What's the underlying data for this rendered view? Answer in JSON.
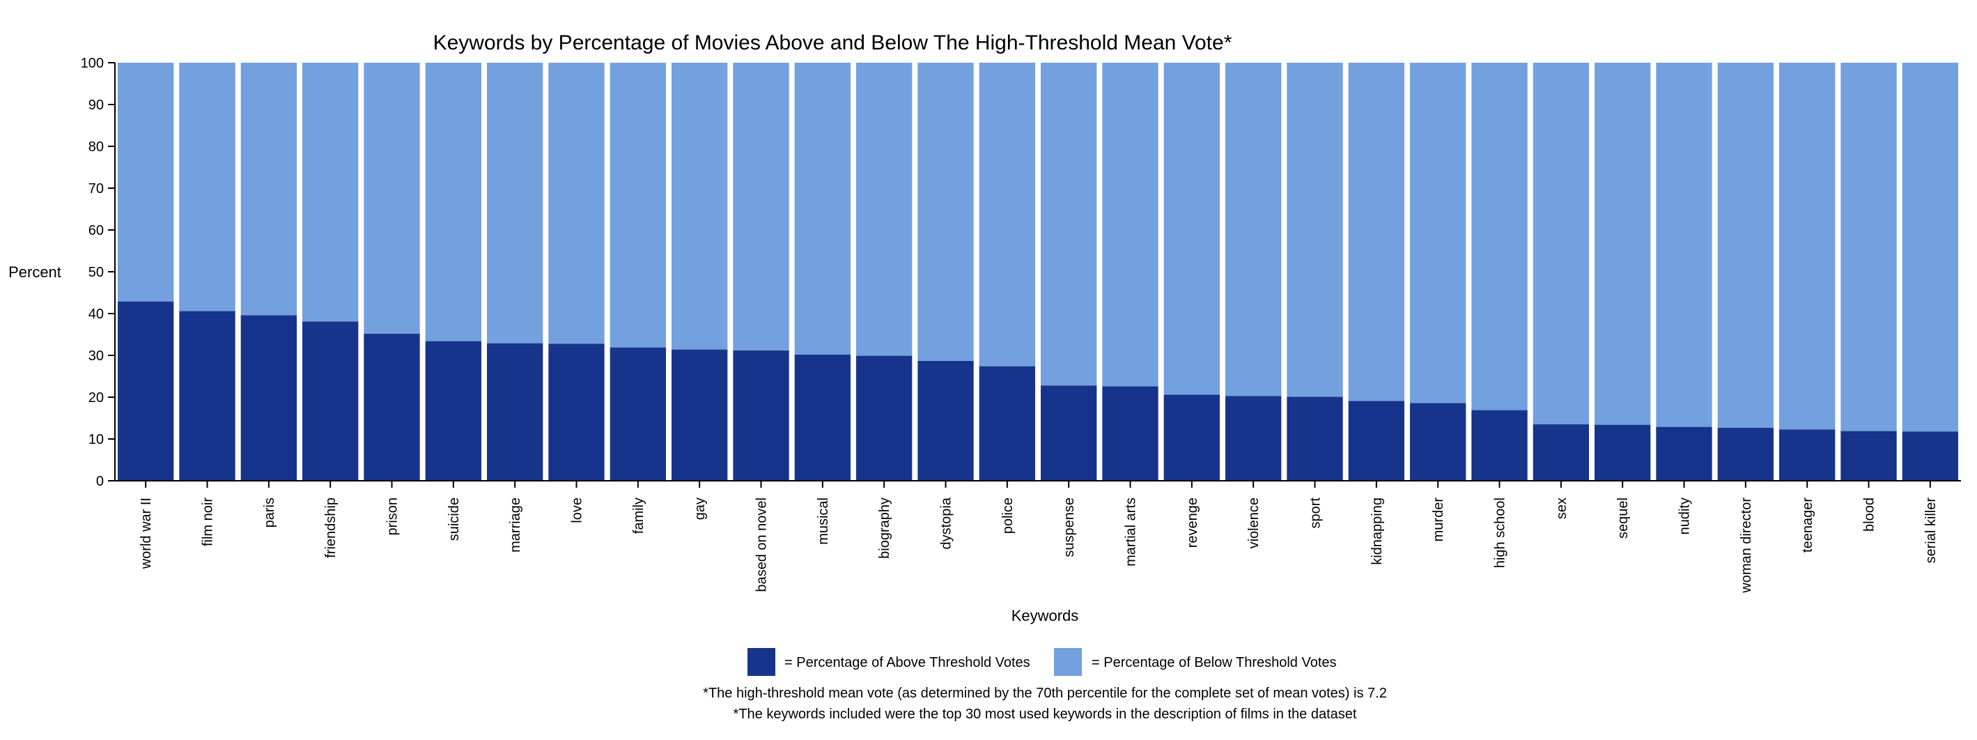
{
  "chart_data": {
    "type": "bar",
    "stacked": true,
    "title": "Keywords by Percentage of Movies Above and Below The High-Threshold Mean Vote*",
    "xlabel": "Keywords",
    "ylabel": "Percent",
    "ylim": [
      0,
      100
    ],
    "yticks": [
      "0",
      "10",
      "20",
      "30",
      "40",
      "50",
      "60",
      "70",
      "80",
      "90",
      "100"
    ],
    "categories": [
      "world war II",
      "film noir",
      "paris",
      "friendship",
      "prison",
      "suicide",
      "marriage",
      "love",
      "family",
      "gay",
      "based on novel",
      "musical",
      "biography",
      "dystopia",
      "police",
      "suspense",
      "martial arts",
      "revenge",
      "violence",
      "sport",
      "kidnapping",
      "murder",
      "high school",
      "sex",
      "sequel",
      "nudity",
      "woman director",
      "teenager",
      "blood",
      "serial killer"
    ],
    "series": [
      {
        "name": "Percentage of Above Threshold Votes",
        "color": "#17348c",
        "values": [
          42.9,
          40.6,
          39.6,
          38.1,
          35.2,
          33.4,
          32.9,
          32.8,
          31.9,
          31.4,
          31.2,
          30.2,
          29.9,
          28.7,
          27.4,
          22.8,
          22.6,
          20.6,
          20.3,
          20.1,
          19.1,
          18.6,
          16.9,
          13.5,
          13.4,
          12.9,
          12.7,
          12.3,
          11.9,
          11.8
        ]
      },
      {
        "name": "Percentage of Below Threshold Votes",
        "color": "#73a0df",
        "values": [
          57.1,
          59.4,
          60.4,
          61.9,
          64.8,
          66.6,
          67.1,
          67.2,
          68.1,
          68.6,
          68.8,
          69.8,
          70.1,
          71.3,
          72.6,
          77.2,
          77.4,
          79.4,
          79.7,
          79.9,
          80.9,
          81.4,
          83.1,
          86.5,
          86.6,
          87.1,
          87.3,
          87.7,
          88.1,
          88.2
        ]
      }
    ],
    "grid": false,
    "legend": {
      "placement": "bottom-center",
      "entries": [
        "= Percentage of Above Threshold Votes",
        "= Percentage of Below Threshold Votes"
      ]
    },
    "footnotes": [
      "*The high-threshold mean vote (as determined by the 70th percentile for the complete set of mean votes) is 7.2",
      "*The keywords included were the top 30 most used keywords in the description of films in the dataset"
    ]
  }
}
